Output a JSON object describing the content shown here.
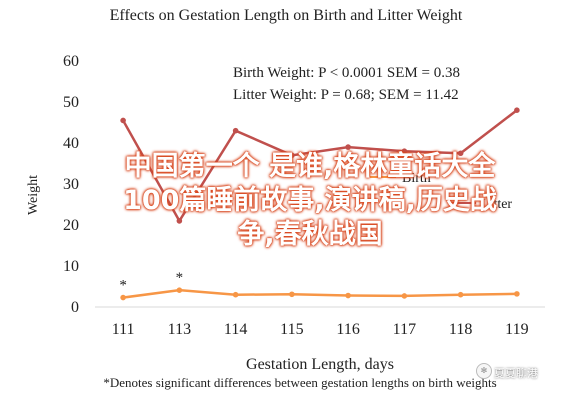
{
  "chart_data": {
    "type": "line",
    "title": "Effects on Gestation Length on Birth and Litter Weight",
    "xlabel": "Gestation Length, days",
    "ylabel": "Weight",
    "categories": [
      "111",
      "113",
      "114",
      "115",
      "116",
      "117",
      "118",
      "119"
    ],
    "ylim": [
      0,
      60
    ],
    "yticks": [
      "0",
      "10",
      "20",
      "30",
      "40",
      "50",
      "60"
    ],
    "grid": false,
    "series": [
      {
        "name": "Litter",
        "color": "#c0504d",
        "values": [
          45.5,
          21,
          43,
          37,
          39,
          38,
          37.5,
          48
        ]
      },
      {
        "name": "Birth",
        "color": "#f79646",
        "values": [
          2.3,
          4.1,
          3.0,
          3.1,
          2.8,
          2.7,
          3.0,
          3.2
        ]
      }
    ],
    "significance_markers": [
      {
        "category": "111",
        "symbol": "*",
        "value": 2.3
      },
      {
        "category": "113",
        "symbol": "*",
        "value": 4.1
      }
    ],
    "legend_position": "center-right",
    "stats": {
      "birth": "Birth Weight: P < 0.0001 SEM = 0.38",
      "litter": "Litter Weight: P = 0.68; SEM = 11.42"
    },
    "footnote": "*Denotes significant differences between gestation lengths on birth weights"
  },
  "overlay": {
    "line1": "中国第一个 是谁,格林童话大全",
    "line2": "100篇睡前故事,演讲稿,历史战",
    "line3": "争,春秋战国"
  },
  "watermark": {
    "text": "夏夏聊港"
  }
}
